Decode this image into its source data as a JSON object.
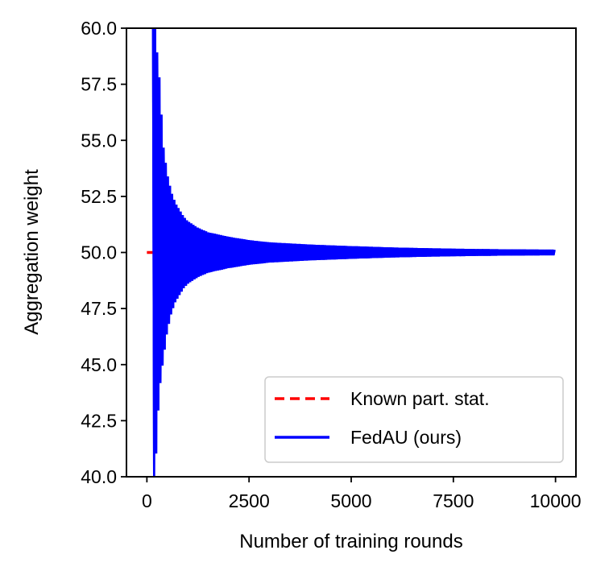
{
  "chart_data": {
    "type": "line",
    "title": "",
    "xlabel": "Number of training rounds",
    "ylabel": "Aggregation weight",
    "xlim": [
      -500,
      10500
    ],
    "ylim": [
      40.0,
      60.0
    ],
    "x_ticks": [
      0,
      2500,
      5000,
      7500,
      10000
    ],
    "x_tick_labels": [
      "0",
      "2500",
      "5000",
      "7500",
      "10000"
    ],
    "y_ticks": [
      40.0,
      42.5,
      45.0,
      47.5,
      50.0,
      52.5,
      55.0,
      57.5,
      60.0
    ],
    "y_tick_labels": [
      "40.0",
      "42.5",
      "45.0",
      "47.5",
      "50.0",
      "52.5",
      "55.0",
      "57.5",
      "60.0"
    ],
    "grid": false,
    "legend_position": "bottom-right",
    "series": [
      {
        "name": "Known part. stat.",
        "color": "#ff0000",
        "style": "dashed",
        "x": [
          0,
          10000
        ],
        "y": [
          50.0,
          50.0
        ]
      },
      {
        "name": "FedAU (ours)",
        "color": "#0000ff",
        "style": "solid",
        "oscillating": true,
        "x": [
          150,
          200,
          300,
          400,
          500,
          600,
          700,
          800,
          900,
          1000,
          1250,
          1500,
          2000,
          2500,
          3000,
          4000,
          5000,
          6000,
          7000,
          8000,
          9000,
          10000
        ],
        "upper": [
          60.0,
          60.0,
          58.0,
          54.8,
          53.5,
          52.7,
          52.2,
          51.9,
          51.6,
          51.4,
          51.1,
          50.9,
          50.7,
          50.55,
          50.45,
          50.35,
          50.28,
          50.22,
          50.18,
          50.15,
          50.13,
          50.12
        ],
        "lower": [
          40.0,
          40.0,
          43.7,
          45.2,
          46.5,
          47.3,
          47.8,
          48.1,
          48.4,
          48.6,
          48.9,
          49.1,
          49.3,
          49.45,
          49.55,
          49.65,
          49.72,
          49.78,
          49.82,
          49.85,
          49.87,
          49.88
        ]
      }
    ]
  }
}
